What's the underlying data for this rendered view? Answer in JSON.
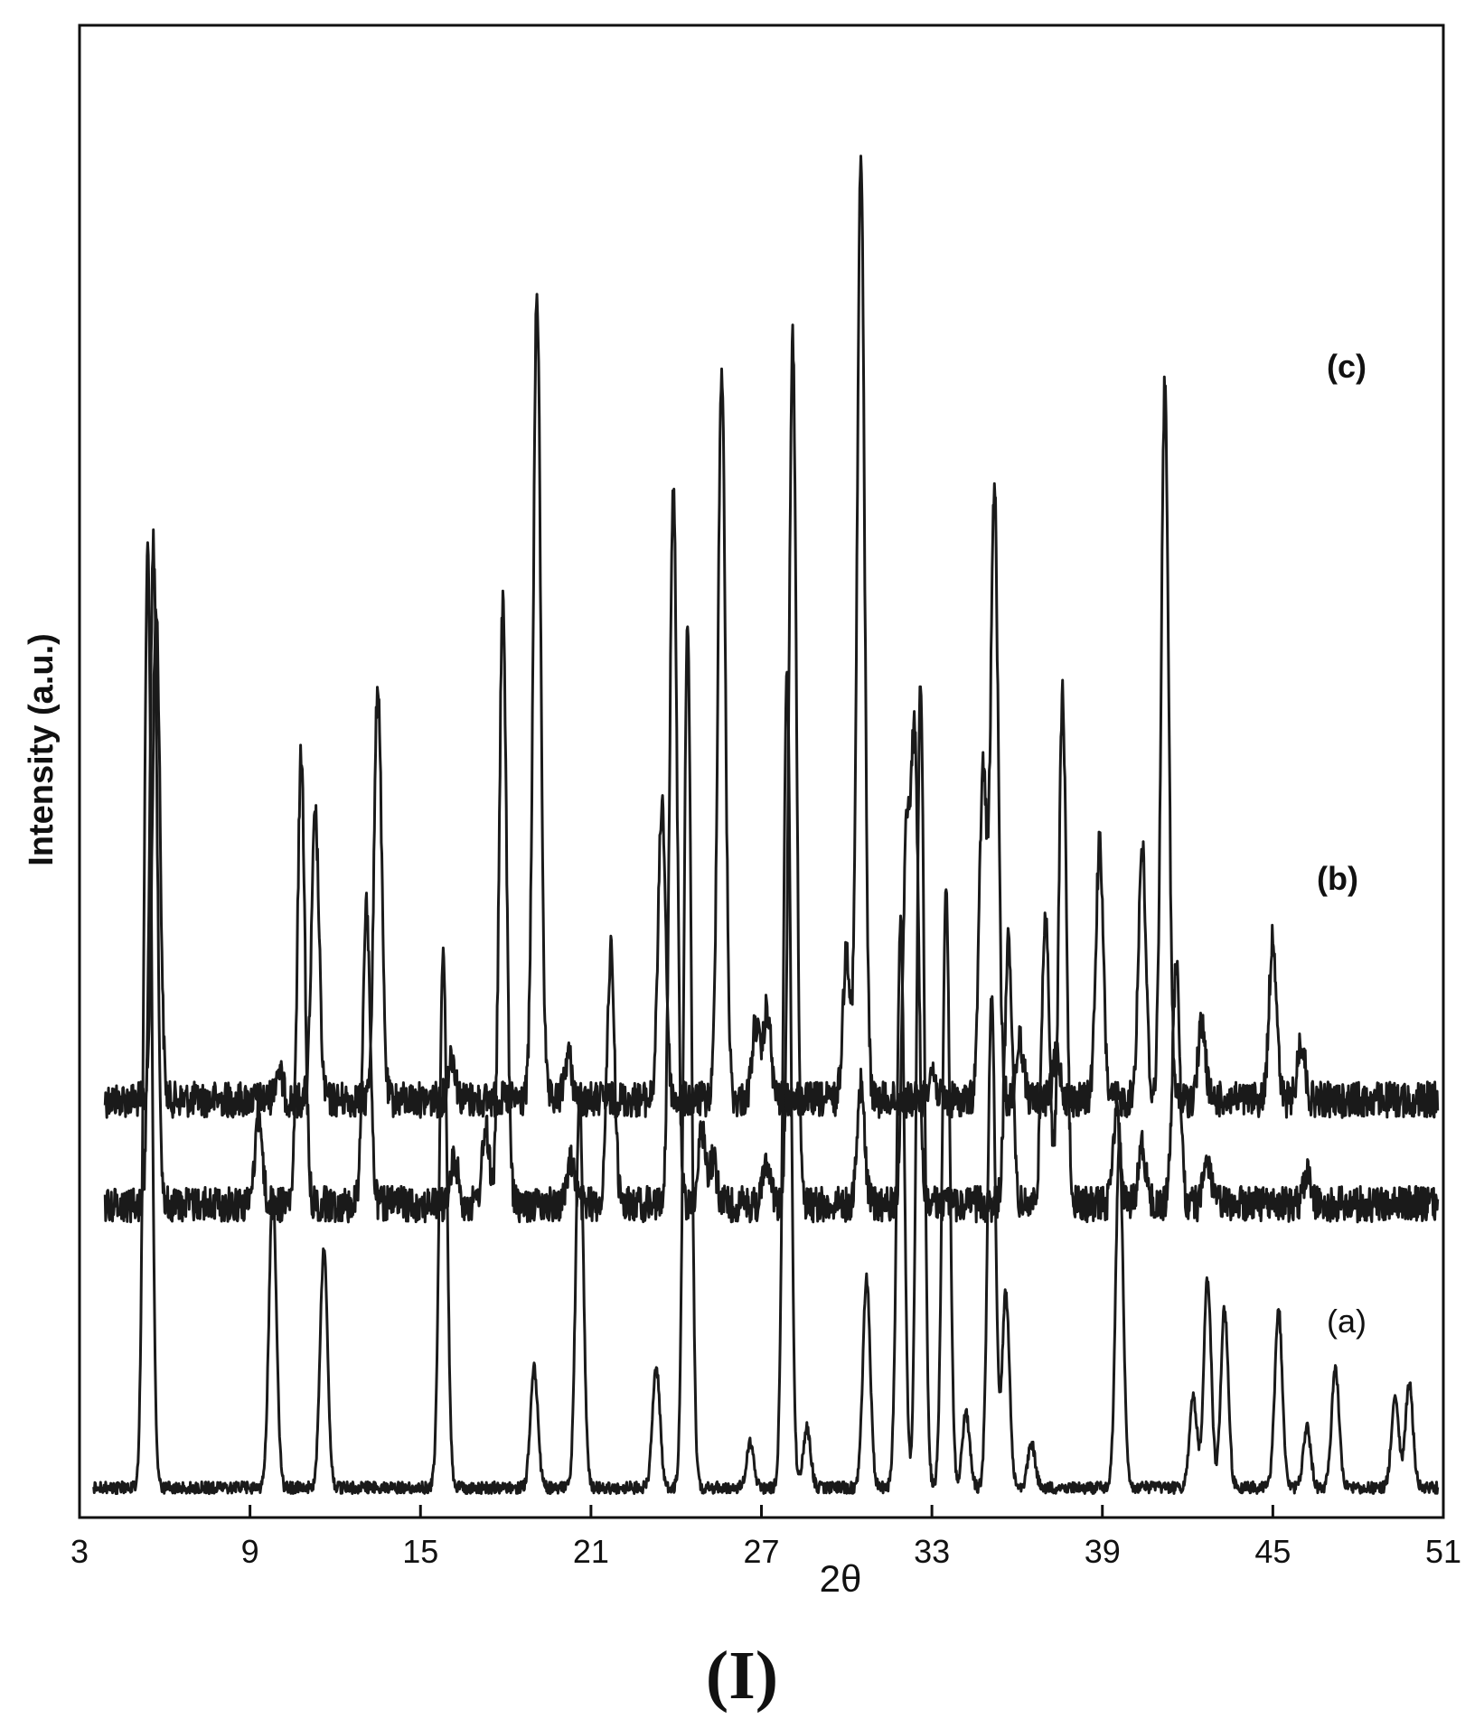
{
  "chart_data": {
    "type": "line",
    "title": "",
    "xlabel": "2θ",
    "ylabel": "Intensity (a.u.)",
    "xlim": [
      3,
      51
    ],
    "xticks": [
      3,
      9,
      15,
      21,
      27,
      33,
      39,
      45,
      51
    ],
    "grid": false,
    "legend": "inline labels at right of each trace",
    "series": [
      {
        "name": "(c)",
        "baseline": 0.72,
        "noise": 0.012,
        "peaks": [
          [
            5.7,
            0.33
          ],
          [
            10.0,
            0.02
          ],
          [
            11.3,
            0.19
          ],
          [
            13.5,
            0.28
          ],
          [
            16.1,
            0.03
          ],
          [
            19.1,
            0.54
          ],
          [
            20.2,
            0.03
          ],
          [
            23.5,
            0.2
          ],
          [
            25.6,
            0.49
          ],
          [
            26.8,
            0.05
          ],
          [
            27.2,
            0.06
          ],
          [
            30.0,
            0.1
          ],
          [
            30.5,
            0.63
          ],
          [
            33.0,
            0.02
          ],
          [
            34.8,
            0.22
          ],
          [
            35.2,
            0.41
          ],
          [
            36.1,
            0.04
          ],
          [
            37.4,
            0.03
          ],
          [
            38.9,
            0.17
          ],
          [
            40.4,
            0.17
          ],
          [
            41.2,
            0.48
          ],
          [
            42.5,
            0.05
          ],
          [
            45.0,
            0.11
          ],
          [
            46.0,
            0.04
          ]
        ]
      },
      {
        "name": "(b)",
        "baseline": 0.79,
        "noise": 0.012,
        "peaks": [
          [
            5.6,
            0.44
          ],
          [
            9.3,
            0.06
          ],
          [
            10.8,
            0.3
          ],
          [
            13.1,
            0.2
          ],
          [
            16.2,
            0.03
          ],
          [
            17.3,
            0.05
          ],
          [
            17.9,
            0.4
          ],
          [
            20.3,
            0.03
          ],
          [
            21.7,
            0.17
          ],
          [
            23.9,
            0.48
          ],
          [
            24.9,
            0.05
          ],
          [
            25.3,
            0.03
          ],
          [
            27.2,
            0.03
          ],
          [
            28.1,
            0.58
          ],
          [
            30.5,
            0.08
          ],
          [
            32.1,
            0.24
          ],
          [
            32.4,
            0.3
          ],
          [
            35.7,
            0.18
          ],
          [
            37.0,
            0.2
          ],
          [
            37.6,
            0.34
          ],
          [
            39.5,
            0.06
          ],
          [
            40.4,
            0.04
          ],
          [
            41.6,
            0.16
          ],
          [
            42.7,
            0.03
          ],
          [
            46.2,
            0.02
          ]
        ]
      },
      {
        "name": "(a)",
        "baseline": 0.98,
        "noise": 0.004,
        "peaks": [
          [
            5.4,
            0.63
          ],
          [
            9.8,
            0.2
          ],
          [
            11.6,
            0.16
          ],
          [
            15.8,
            0.36
          ],
          [
            19.0,
            0.08
          ],
          [
            20.6,
            0.26
          ],
          [
            23.3,
            0.08
          ],
          [
            24.4,
            0.58
          ],
          [
            26.6,
            0.03
          ],
          [
            27.9,
            0.55
          ],
          [
            28.6,
            0.04
          ],
          [
            30.7,
            0.14
          ],
          [
            31.9,
            0.38
          ],
          [
            32.6,
            0.54
          ],
          [
            33.5,
            0.4
          ],
          [
            34.2,
            0.05
          ],
          [
            35.1,
            0.33
          ],
          [
            35.6,
            0.13
          ],
          [
            36.5,
            0.03
          ],
          [
            39.6,
            0.23
          ],
          [
            42.2,
            0.06
          ],
          [
            42.7,
            0.14
          ],
          [
            43.3,
            0.12
          ],
          [
            45.2,
            0.12
          ],
          [
            46.2,
            0.04
          ],
          [
            47.2,
            0.08
          ],
          [
            49.3,
            0.06
          ],
          [
            49.8,
            0.07
          ]
        ]
      }
    ]
  },
  "caption": "(I)"
}
